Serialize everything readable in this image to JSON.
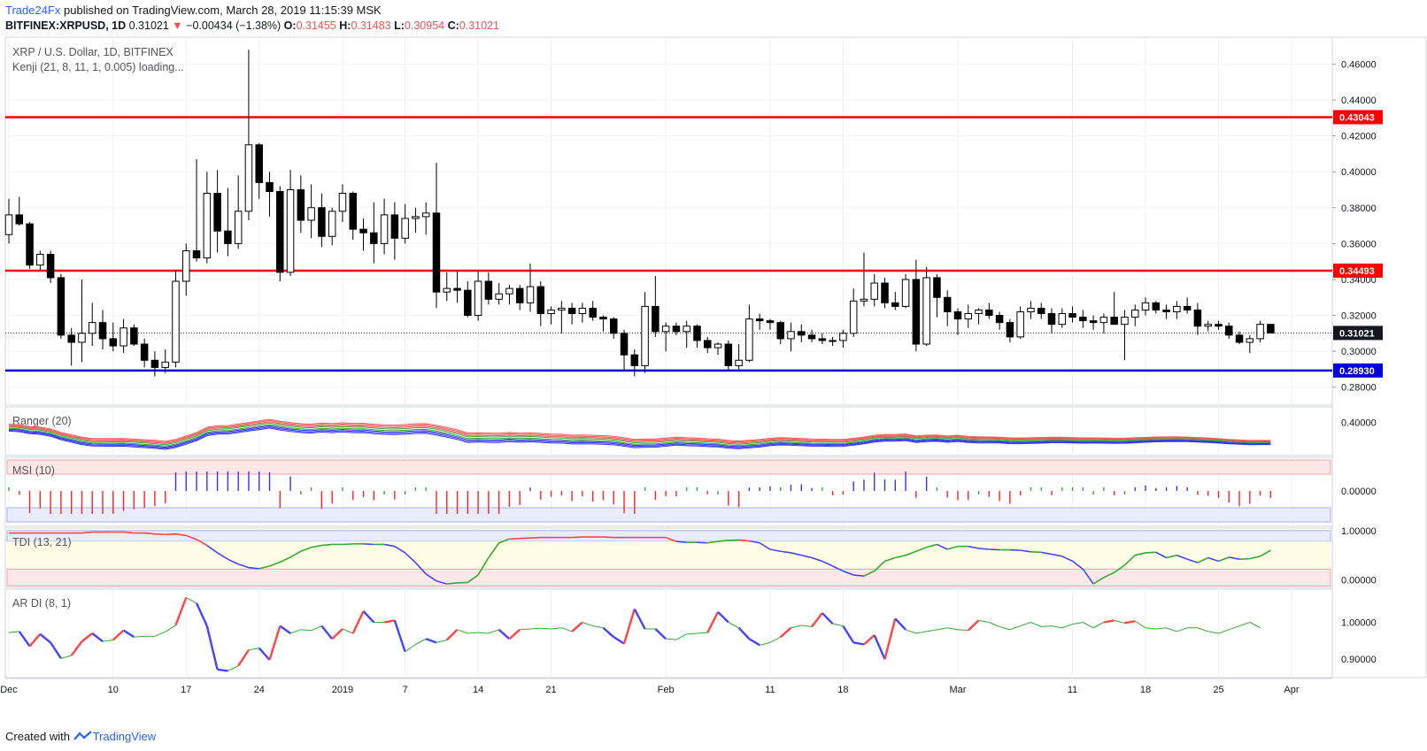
{
  "header": {
    "author": "Trade24Fx",
    "published": "published on TradingView.com, March 28, 2019 11:15:39 MSK",
    "symbol": "BITFINEX:XRPUSD, 1D",
    "last": "0.31021",
    "change_arrow": "▼",
    "change": "−0.00434 (−1.38%)",
    "o_label": "O:",
    "o": "0.31455",
    "h_label": "H:",
    "h": "0.31483",
    "l_label": "L:",
    "l": "0.30954",
    "c_label": "C:",
    "c": "0.31021"
  },
  "footer": {
    "created_with": "Created with",
    "brand": "TradingView",
    "logo_icon": "tradingview-logo-icon"
  },
  "colors": {
    "up_body": "#ffffff",
    "down_body": "#000000",
    "wick": "#000000",
    "resistance": "#ff0000",
    "support": "#0000dd",
    "ranger_red": "#ff5555",
    "ranger_blue": "#3333ff",
    "ranger_green": "#33aa33",
    "msi_red": "#ff2222",
    "msi_blue": "#3333ff",
    "msi_green": "#33aa33"
  },
  "chart_data": [
    {
      "type": "candlestick",
      "title": "XRP / U.S. Dollar, 1D, BITFINEX",
      "subtitle": "Kenji (21, 8, 11, 1, 0.005) loading...",
      "ylim": [
        0.27,
        0.475
      ],
      "y_ticks": [
        "0.28000",
        "0.30000",
        "0.32000",
        "0.34000",
        "0.36000",
        "0.38000",
        "0.40000",
        "0.42000",
        "0.44000",
        "0.46000"
      ],
      "x_ticks": [
        "Dec",
        "10",
        "17",
        "24",
        "2019",
        "7",
        "14",
        "21",
        "Feb",
        "11",
        "18",
        "Mar",
        "11",
        "18",
        "25",
        "Apr"
      ],
      "price_labels": [
        {
          "value": 0.43043,
          "text": "0.43043",
          "color": "#ff0000"
        },
        {
          "value": 0.34493,
          "text": "0.34493",
          "color": "#ff0000"
        },
        {
          "value": 0.31021,
          "text": "0.31021",
          "color": "#131722"
        },
        {
          "value": 0.2893,
          "text": "0.28930",
          "color": "#0000dd"
        }
      ],
      "horizontal_lines": [
        {
          "value": 0.43043,
          "color": "#ff0000"
        },
        {
          "value": 0.34493,
          "color": "#ff0000"
        },
        {
          "value": 0.2893,
          "color": "#0000dd"
        }
      ],
      "last_price": 0.31021,
      "ohlc": [
        [
          0.365,
          0.385,
          0.36,
          0.376
        ],
        [
          0.376,
          0.386,
          0.37,
          0.371
        ],
        [
          0.371,
          0.372,
          0.346,
          0.348
        ],
        [
          0.348,
          0.356,
          0.345,
          0.354
        ],
        [
          0.354,
          0.356,
          0.338,
          0.341
        ],
        [
          0.341,
          0.343,
          0.307,
          0.309
        ],
        [
          0.309,
          0.313,
          0.292,
          0.305
        ],
        [
          0.305,
          0.34,
          0.294,
          0.31
        ],
        [
          0.31,
          0.327,
          0.303,
          0.316
        ],
        [
          0.316,
          0.323,
          0.301,
          0.307
        ],
        [
          0.307,
          0.316,
          0.3,
          0.303
        ],
        [
          0.303,
          0.318,
          0.299,
          0.313
        ],
        [
          0.313,
          0.315,
          0.303,
          0.304
        ],
        [
          0.304,
          0.307,
          0.291,
          0.295
        ],
        [
          0.295,
          0.3,
          0.286,
          0.291
        ],
        [
          0.291,
          0.301,
          0.288,
          0.294
        ],
        [
          0.294,
          0.345,
          0.291,
          0.339
        ],
        [
          0.339,
          0.36,
          0.331,
          0.356
        ],
        [
          0.356,
          0.407,
          0.35,
          0.352
        ],
        [
          0.352,
          0.4,
          0.349,
          0.388
        ],
        [
          0.388,
          0.401,
          0.355,
          0.367
        ],
        [
          0.367,
          0.391,
          0.353,
          0.36
        ],
        [
          0.36,
          0.398,
          0.357,
          0.378
        ],
        [
          0.378,
          0.468,
          0.373,
          0.415
        ],
        [
          0.415,
          0.416,
          0.385,
          0.394
        ],
        [
          0.394,
          0.4,
          0.375,
          0.389
        ],
        [
          0.389,
          0.392,
          0.339,
          0.344
        ],
        [
          0.344,
          0.401,
          0.342,
          0.39
        ],
        [
          0.39,
          0.398,
          0.366,
          0.373
        ],
        [
          0.373,
          0.393,
          0.363,
          0.38
        ],
        [
          0.38,
          0.388,
          0.358,
          0.364
        ],
        [
          0.364,
          0.38,
          0.359,
          0.378
        ],
        [
          0.378,
          0.393,
          0.372,
          0.388
        ],
        [
          0.388,
          0.389,
          0.362,
          0.368
        ],
        [
          0.368,
          0.374,
          0.356,
          0.366
        ],
        [
          0.366,
          0.383,
          0.349,
          0.36
        ],
        [
          0.36,
          0.385,
          0.354,
          0.376
        ],
        [
          0.376,
          0.383,
          0.351,
          0.363
        ],
        [
          0.363,
          0.382,
          0.36,
          0.374
        ],
        [
          0.374,
          0.38,
          0.366,
          0.375
        ],
        [
          0.375,
          0.383,
          0.365,
          0.377
        ],
        [
          0.377,
          0.405,
          0.324,
          0.333
        ],
        [
          0.333,
          0.344,
          0.328,
          0.335
        ],
        [
          0.335,
          0.345,
          0.327,
          0.334
        ],
        [
          0.334,
          0.339,
          0.319,
          0.32
        ],
        [
          0.32,
          0.345,
          0.317,
          0.339
        ],
        [
          0.339,
          0.344,
          0.326,
          0.329
        ],
        [
          0.329,
          0.338,
          0.326,
          0.332
        ],
        [
          0.332,
          0.337,
          0.326,
          0.335
        ],
        [
          0.335,
          0.337,
          0.323,
          0.327
        ],
        [
          0.327,
          0.349,
          0.322,
          0.336
        ],
        [
          0.336,
          0.339,
          0.314,
          0.321
        ],
        [
          0.321,
          0.325,
          0.315,
          0.323
        ],
        [
          0.323,
          0.328,
          0.31,
          0.324
        ],
        [
          0.324,
          0.327,
          0.315,
          0.321
        ],
        [
          0.321,
          0.327,
          0.316,
          0.324
        ],
        [
          0.324,
          0.328,
          0.317,
          0.319
        ],
        [
          0.319,
          0.32,
          0.311,
          0.318
        ],
        [
          0.318,
          0.319,
          0.307,
          0.31
        ],
        [
          0.31,
          0.312,
          0.289,
          0.298
        ],
        [
          0.298,
          0.301,
          0.286,
          0.292
        ],
        [
          0.292,
          0.333,
          0.288,
          0.325
        ],
        [
          0.325,
          0.342,
          0.308,
          0.311
        ],
        [
          0.311,
          0.316,
          0.3,
          0.314
        ],
        [
          0.314,
          0.316,
          0.309,
          0.311
        ],
        [
          0.311,
          0.317,
          0.302,
          0.314
        ],
        [
          0.314,
          0.315,
          0.302,
          0.306
        ],
        [
          0.306,
          0.308,
          0.299,
          0.302
        ],
        [
          0.302,
          0.305,
          0.298,
          0.304
        ],
        [
          0.304,
          0.306,
          0.289,
          0.292
        ],
        [
          0.292,
          0.304,
          0.29,
          0.295
        ],
        [
          0.295,
          0.326,
          0.294,
          0.318
        ],
        [
          0.318,
          0.321,
          0.312,
          0.317
        ],
        [
          0.317,
          0.318,
          0.312,
          0.316
        ],
        [
          0.316,
          0.317,
          0.304,
          0.307
        ],
        [
          0.307,
          0.316,
          0.3,
          0.311
        ],
        [
          0.311,
          0.315,
          0.305,
          0.309
        ],
        [
          0.309,
          0.312,
          0.305,
          0.307
        ],
        [
          0.307,
          0.31,
          0.304,
          0.306
        ],
        [
          0.306,
          0.308,
          0.303,
          0.306
        ],
        [
          0.306,
          0.312,
          0.302,
          0.31
        ],
        [
          0.31,
          0.335,
          0.308,
          0.328
        ],
        [
          0.328,
          0.355,
          0.325,
          0.329
        ],
        [
          0.329,
          0.343,
          0.325,
          0.338
        ],
        [
          0.338,
          0.341,
          0.324,
          0.327
        ],
        [
          0.327,
          0.333,
          0.323,
          0.325
        ],
        [
          0.325,
          0.343,
          0.324,
          0.34
        ],
        [
          0.34,
          0.351,
          0.3,
          0.304
        ],
        [
          0.304,
          0.347,
          0.303,
          0.341
        ],
        [
          0.341,
          0.343,
          0.319,
          0.33
        ],
        [
          0.33,
          0.334,
          0.314,
          0.322
        ],
        [
          0.322,
          0.324,
          0.309,
          0.318
        ],
        [
          0.318,
          0.326,
          0.313,
          0.321
        ],
        [
          0.321,
          0.324,
          0.315,
          0.323
        ],
        [
          0.323,
          0.327,
          0.318,
          0.32
        ],
        [
          0.32,
          0.322,
          0.312,
          0.316
        ],
        [
          0.316,
          0.318,
          0.305,
          0.308
        ],
        [
          0.308,
          0.325,
          0.307,
          0.322
        ],
        [
          0.322,
          0.328,
          0.318,
          0.324
        ],
        [
          0.324,
          0.327,
          0.318,
          0.321
        ],
        [
          0.321,
          0.324,
          0.31,
          0.315
        ],
        [
          0.315,
          0.324,
          0.313,
          0.321
        ],
        [
          0.321,
          0.325,
          0.316,
          0.319
        ],
        [
          0.319,
          0.323,
          0.313,
          0.317
        ],
        [
          0.317,
          0.32,
          0.312,
          0.316
        ],
        [
          0.316,
          0.321,
          0.31,
          0.319
        ],
        [
          0.319,
          0.333,
          0.315,
          0.315
        ],
        [
          0.315,
          0.323,
          0.295,
          0.319
        ],
        [
          0.319,
          0.326,
          0.314,
          0.323
        ],
        [
          0.323,
          0.33,
          0.32,
          0.327
        ],
        [
          0.327,
          0.328,
          0.321,
          0.323
        ],
        [
          0.323,
          0.326,
          0.318,
          0.322
        ],
        [
          0.322,
          0.328,
          0.318,
          0.325
        ],
        [
          0.325,
          0.33,
          0.321,
          0.323
        ],
        [
          0.323,
          0.327,
          0.309,
          0.314
        ],
        [
          0.314,
          0.317,
          0.311,
          0.315
        ],
        [
          0.315,
          0.317,
          0.312,
          0.314
        ],
        [
          0.314,
          0.316,
          0.307,
          0.309
        ],
        [
          0.309,
          0.311,
          0.304,
          0.305
        ],
        [
          0.305,
          0.309,
          0.299,
          0.307
        ],
        [
          0.307,
          0.317,
          0.305,
          0.315
        ],
        [
          0.315,
          0.315,
          0.31,
          0.3102
        ]
      ]
    },
    {
      "type": "line",
      "title": "Ranger (20)",
      "y_ticks": [
        "0.40000"
      ],
      "note": "red/blue/green band lines following price"
    },
    {
      "type": "histogram",
      "title": "MSI (10)",
      "y_ticks": [
        "0.00000"
      ],
      "zone_colors": {
        "top": "#fde8e8",
        "bottom": "#e8ecfc"
      }
    },
    {
      "type": "line",
      "title": "TDI (13, 21)",
      "y_ticks": [
        "1.00000",
        "0.00000"
      ],
      "points": [
        0.95,
        0.95,
        0.95,
        0.95,
        0.95,
        0.95,
        0.95,
        0.95,
        0.97,
        0.97,
        0.97,
        0.97,
        0.95,
        0.95,
        0.93,
        0.92,
        0.93,
        0.9,
        0.82,
        0.7,
        0.55,
        0.42,
        0.32,
        0.25,
        0.23,
        0.28,
        0.36,
        0.46,
        0.58,
        0.66,
        0.7,
        0.72,
        0.72,
        0.73,
        0.73,
        0.72,
        0.72,
        0.68,
        0.55,
        0.35,
        0.12,
        -0.02,
        -0.08,
        -0.06,
        -0.05,
        0.1,
        0.45,
        0.75,
        0.83,
        0.84,
        0.85,
        0.86,
        0.86,
        0.86,
        0.86,
        0.87,
        0.87,
        0.87,
        0.86,
        0.86,
        0.86,
        0.86,
        0.86,
        0.86,
        0.78,
        0.76,
        0.76,
        0.75,
        0.78,
        0.8,
        0.81,
        0.79,
        0.75,
        0.62,
        0.58,
        0.55,
        0.5,
        0.45,
        0.38,
        0.28,
        0.18,
        0.1,
        0.08,
        0.18,
        0.38,
        0.45,
        0.5,
        0.58,
        0.66,
        0.72,
        0.62,
        0.68,
        0.68,
        0.64,
        0.62,
        0.61,
        0.61,
        0.6,
        0.57,
        0.56,
        0.52,
        0.48,
        0.38,
        0.22,
        -0.08,
        0.05,
        0.15,
        0.3,
        0.5,
        0.55,
        0.56,
        0.45,
        0.5,
        0.42,
        0.35,
        0.45,
        0.38,
        0.46,
        0.42,
        0.43,
        0.48,
        0.6,
        0.8,
        0.75,
        0.78
      ]
    },
    {
      "type": "line",
      "title": "AR DI (8, 1)",
      "y_ticks": [
        "1.00000",
        "0.90000"
      ],
      "points": [
        0.972,
        0.975,
        0.935,
        0.968,
        0.945,
        0.902,
        0.91,
        0.948,
        0.97,
        0.948,
        0.952,
        0.978,
        0.96,
        0.962,
        0.962,
        0.974,
        0.992,
        1.067,
        1.052,
        0.99,
        0.872,
        0.868,
        0.882,
        0.925,
        0.93,
        0.898,
        0.99,
        0.97,
        0.98,
        0.978,
        0.99,
        0.955,
        0.982,
        0.97,
        1.03,
        1.0,
        1.0,
        1.005,
        0.92,
        0.94,
        0.955,
        0.945,
        0.952,
        0.98,
        0.97,
        0.972,
        0.97,
        0.98,
        0.955,
        0.98,
        0.982,
        0.984,
        0.982,
        0.985,
        0.975,
        1.0,
        0.99,
        0.985,
        0.96,
        0.942,
        1.036,
        0.982,
        0.982,
        0.955,
        0.953,
        0.968,
        0.97,
        0.972,
        1.028,
        1.0,
        0.985,
        0.955,
        0.938,
        0.945,
        0.96,
        0.985,
        0.992,
        0.988,
        1.025,
        0.996,
        0.99,
        0.945,
        0.94,
        0.965,
        0.9,
        1.01,
        0.98,
        0.97,
        0.975,
        0.98,
        0.985,
        0.98,
        0.978,
        1.005,
        1.0,
        0.988,
        0.98,
        0.99,
        1.0,
        0.988,
        0.99,
        0.985,
        0.995,
        1.0,
        0.985,
        1.0,
        1.005,
        0.998,
        1.003,
        0.985,
        0.982,
        0.985,
        0.975,
        0.985,
        0.985,
        0.975,
        0.97,
        0.98,
        0.99,
        1.0,
        0.985
      ]
    }
  ]
}
